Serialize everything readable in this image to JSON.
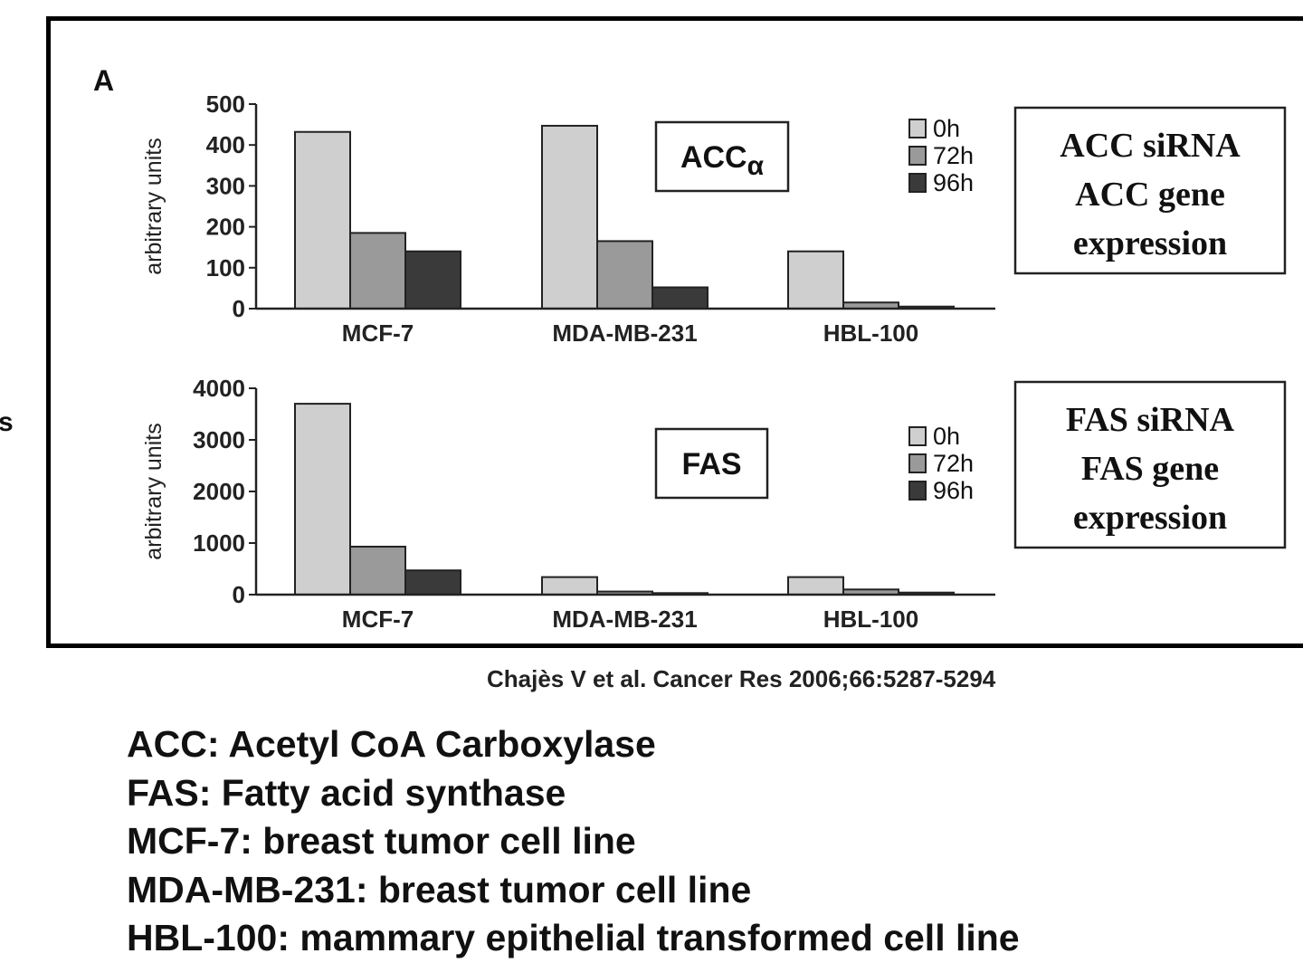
{
  "panel_label": "A",
  "stray_mark": "s",
  "chart_data": [
    {
      "type": "bar",
      "categories": [
        "MCF-7",
        "MDA-MB-231",
        "HBL-100"
      ],
      "series": [
        {
          "name": "0h",
          "values": [
            432,
            447,
            140
          ],
          "color": "#cfcfcf"
        },
        {
          "name": "72h",
          "values": [
            185,
            165,
            15
          ],
          "color": "#9a9a9a"
        },
        {
          "name": "96h",
          "values": [
            140,
            52,
            5
          ],
          "color": "#3a3a3a"
        }
      ],
      "ylabel": "arbitrary units",
      "ylim": [
        0,
        500
      ],
      "yticks": [
        0,
        100,
        200,
        300,
        400,
        500
      ],
      "inset_label": "ACC",
      "inset_subscript": "α",
      "side_label": [
        "ACC siRNA",
        "ACC gene",
        "expression"
      ],
      "legend_position": "top-right",
      "grid": false
    },
    {
      "type": "bar",
      "categories": [
        "MCF-7",
        "MDA-MB-231",
        "HBL-100"
      ],
      "series": [
        {
          "name": "0h",
          "values": [
            3700,
            340,
            340
          ],
          "color": "#cfcfcf"
        },
        {
          "name": "72h",
          "values": [
            930,
            60,
            100
          ],
          "color": "#9a9a9a"
        },
        {
          "name": "96h",
          "values": [
            470,
            30,
            40
          ],
          "color": "#3a3a3a"
        }
      ],
      "ylabel": "arbitrary units",
      "ylim": [
        0,
        4000
      ],
      "yticks": [
        0,
        1000,
        2000,
        3000,
        4000
      ],
      "inset_label": "FAS",
      "inset_subscript": "",
      "side_label": [
        "FAS siRNA",
        "FAS gene",
        "expression"
      ],
      "legend_position": "top-right",
      "grid": false
    }
  ],
  "citation": "Chajès V et al. Cancer Res 2006;66:5287-5294",
  "glossary": [
    "ACC: Acetyl CoA Carboxylase",
    "FAS: Fatty acid synthase",
    "MCF-7: breast tumor cell line",
    "MDA-MB-231: breast tumor cell line",
    "HBL-100: mammary epithelial transformed cell line"
  ]
}
